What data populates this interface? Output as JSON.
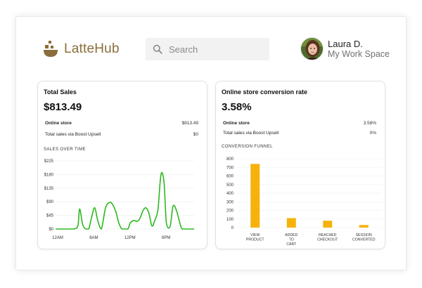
{
  "app": {
    "name": "LatteHub"
  },
  "search": {
    "placeholder": "Search"
  },
  "user": {
    "name": "Laura D.",
    "workspace": "My Work Space"
  },
  "colors": {
    "brand": "#8a6d3b",
    "line": "#2db820",
    "bar": "#f6b20b"
  },
  "icons": {
    "logo": "coffee-cup-logo-icon",
    "search": "search-icon"
  },
  "sales_card": {
    "title": "Total Sales",
    "value": "$813.49",
    "rows": [
      {
        "label": "Online store",
        "value": "$813.49"
      },
      {
        "label": "Total sales via Boost Upsell",
        "value": "$0"
      }
    ],
    "section": "SALES OVER TIME"
  },
  "conversion_card": {
    "title": "Online store conversion rate",
    "value": "3.58%",
    "rows": [
      {
        "label": "Online store",
        "value": "3.58%"
      },
      {
        "label": "Total sales via Boost Upsell",
        "value": "0%"
      }
    ],
    "section": "CONVERSION FUNNEL"
  },
  "chart_data": [
    {
      "type": "line",
      "title": "SALES OVER TIME",
      "y_ticks": [
        "$0",
        "$45",
        "$90",
        "$135",
        "$180",
        "$225"
      ],
      "ylim": [
        0,
        225
      ],
      "x_ticks": [
        {
          "label": "12AM",
          "hour": 0
        },
        {
          "label": "6AM",
          "hour": 6
        },
        {
          "label": "12PM",
          "hour": 12
        },
        {
          "label": "6PM",
          "hour": 18
        }
      ],
      "xlim": [
        0,
        23
      ],
      "grid": true,
      "x": [
        0,
        1,
        2,
        3,
        3.7,
        4,
        4.5,
        5,
        5.5,
        6,
        6.5,
        7,
        7.6,
        8.3,
        9,
        9.5,
        10,
        10.5,
        11,
        11.3,
        12,
        12.4,
        13,
        13.5,
        14,
        14.5,
        15,
        15.5,
        16,
        16.5,
        17,
        17.5,
        18,
        18.4,
        19,
        19.5,
        20,
        20.5,
        21,
        22,
        23
      ],
      "values": [
        0,
        0,
        0,
        0,
        10,
        66,
        15,
        0,
        0,
        40,
        70,
        28,
        0,
        70,
        88,
        80,
        57,
        20,
        0,
        0,
        0,
        20,
        28,
        25,
        35,
        60,
        70,
        52,
        10,
        30,
        65,
        180,
        155,
        20,
        8,
        75,
        65,
        30,
        0,
        0,
        0
      ]
    },
    {
      "type": "bar",
      "title": "CONVERSION FUNNEL",
      "categories": [
        [
          "VIEW",
          "PRODUCT"
        ],
        [
          "ADDED",
          "TO",
          "CART"
        ],
        [
          "REACHED",
          "CHECKOUT"
        ],
        [
          "SESSION",
          "CONVERTED"
        ]
      ],
      "values": [
        740,
        110,
        80,
        30
      ],
      "y_ticks": [
        "0",
        "100",
        "200",
        "300",
        "400",
        "500",
        "600",
        "700",
        "800"
      ],
      "ylim": [
        0,
        800
      ],
      "grid": true
    }
  ]
}
